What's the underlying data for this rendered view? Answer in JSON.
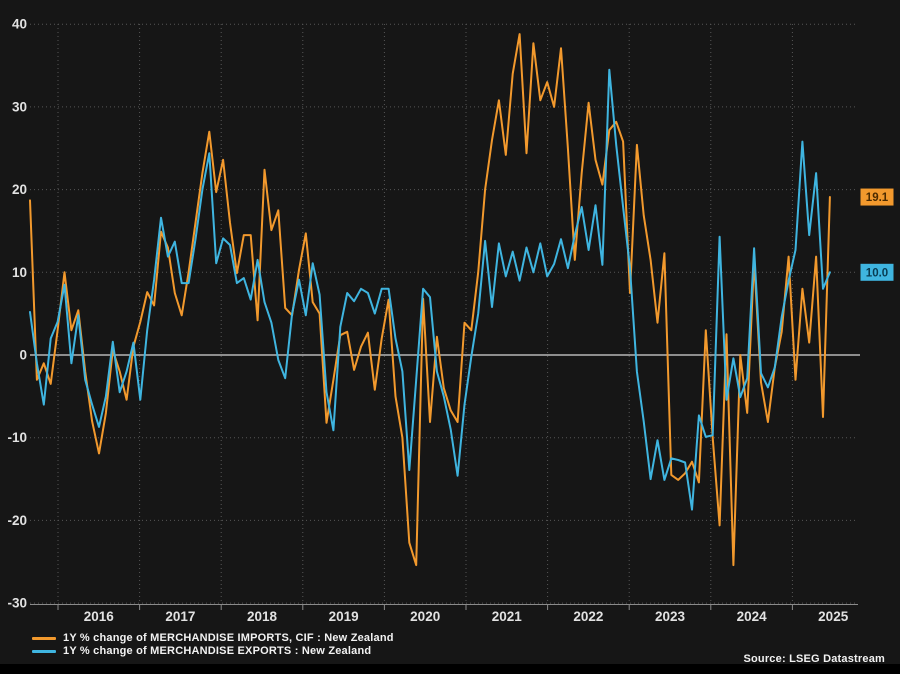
{
  "source_note": "Source: LSEG Datastream",
  "colors": {
    "background": "#161616",
    "bottom_bar": "#000000",
    "grid": "#575757",
    "zero_line": "#d6d6d6",
    "axis_line": "#8a8a8a",
    "axis_text": "#e2e2e2",
    "imports": "#F2992D",
    "exports": "#3FB5E0",
    "badge_text_imports": "#4a2a00",
    "badge_text_exports": "#083c52"
  },
  "chart_data": {
    "type": "line",
    "title": "",
    "xlabel": "",
    "ylabel": "",
    "grid": "dotted",
    "legend_position": "bottom-left",
    "ylim": [
      -30,
      40
    ],
    "y_ticks": [
      40,
      30,
      20,
      10,
      0,
      -10,
      -20,
      -30
    ],
    "x_tick_labels": [
      "2016",
      "2017",
      "2018",
      "2019",
      "2020",
      "2021",
      "2022",
      "2023",
      "2024",
      "2025"
    ],
    "x_range": [
      2015.657,
      2025.46
    ],
    "frequency": "monthly",
    "series": [
      {
        "name": "1Y % change of MERCHANDISE IMPORTS, CIF : New Zealand",
        "color": "#F2992D",
        "end_label": "19.1",
        "values": [
          18.7,
          -3.0,
          -1.0,
          -3.5,
          3.0,
          10.0,
          3.0,
          5.4,
          -2.0,
          -8.0,
          -11.9,
          -7.0,
          0.6,
          -2.0,
          -5.4,
          1.0,
          4.0,
          7.6,
          6.0,
          14.9,
          13.0,
          7.5,
          4.8,
          10.0,
          16.0,
          22.0,
          27.0,
          19.7,
          23.6,
          16.0,
          9.9,
          14.5,
          14.5,
          4.2,
          22.4,
          15.1,
          17.5,
          5.7,
          4.8,
          10.3,
          14.7,
          6.4,
          5.0,
          -8.2,
          -3.0,
          2.4,
          2.8,
          -1.8,
          1.0,
          2.7,
          -4.2,
          2.0,
          6.7,
          -5.0,
          -10.0,
          -22.7,
          -25.4,
          6.8,
          -8.1,
          2.2,
          -4.0,
          -6.7,
          -8.1,
          3.9,
          3.0,
          10.0,
          20.0,
          26.0,
          30.8,
          24.2,
          34.0,
          38.8,
          24.4,
          37.7,
          30.8,
          33.0,
          30.0,
          37.1,
          25.0,
          11.5,
          22.0,
          30.5,
          23.6,
          20.6,
          27.2,
          28.2,
          25.8,
          7.5,
          25.4,
          16.9,
          11.5,
          3.9,
          12.3,
          -14.5,
          -15.1,
          -14.3,
          -12.9,
          -15.4,
          3.0,
          -10.0,
          -20.6,
          2.5,
          -25.4,
          0.0,
          -7.0,
          11.5,
          -3.3,
          -8.1,
          -1.5,
          2.8,
          11.9,
          -3.0,
          8.0,
          1.5,
          11.9,
          -7.5,
          19.1
        ]
      },
      {
        "name": "1Y % change of MERCHANDISE EXPORTS : New Zealand",
        "color": "#3FB5E0",
        "end_label": "10.0",
        "values": [
          5.2,
          -1.0,
          -6.0,
          2.0,
          4.0,
          8.5,
          -1.0,
          4.8,
          -3.0,
          -6.0,
          -8.7,
          -5.0,
          1.6,
          -4.5,
          -2.0,
          1.5,
          -5.4,
          3.0,
          9.1,
          16.6,
          11.9,
          13.7,
          8.7,
          8.7,
          14.0,
          20.0,
          24.4,
          11.1,
          14.1,
          13.3,
          8.7,
          9.3,
          6.7,
          11.5,
          6.4,
          3.9,
          -0.6,
          -2.8,
          5.0,
          9.1,
          4.8,
          11.1,
          7.3,
          -4.5,
          -9.1,
          3.4,
          7.5,
          6.5,
          8.0,
          7.5,
          5.0,
          8.0,
          8.0,
          2.0,
          -2.0,
          -13.9,
          -3.0,
          8.0,
          7.0,
          -2.0,
          -5.0,
          -9.0,
          -14.6,
          -6.0,
          -0.2,
          5.0,
          13.8,
          5.8,
          13.5,
          9.5,
          12.5,
          9.0,
          13.0,
          10.0,
          13.5,
          9.5,
          11.0,
          14.0,
          10.5,
          14.5,
          17.9,
          12.7,
          18.1,
          10.9,
          34.5,
          25.4,
          17.9,
          10.5,
          -2.0,
          -8.0,
          -15.0,
          -10.3,
          -15.1,
          -12.5,
          -12.7,
          -13.0,
          -18.7,
          -7.3,
          -9.9,
          -9.7,
          14.3,
          -5.4,
          -0.4,
          -5.1,
          -2.8,
          12.9,
          -2.2,
          -3.9,
          -1.5,
          4.6,
          9.0,
          12.7,
          25.8,
          14.5,
          22.0,
          8.0,
          10.0
        ]
      }
    ]
  }
}
